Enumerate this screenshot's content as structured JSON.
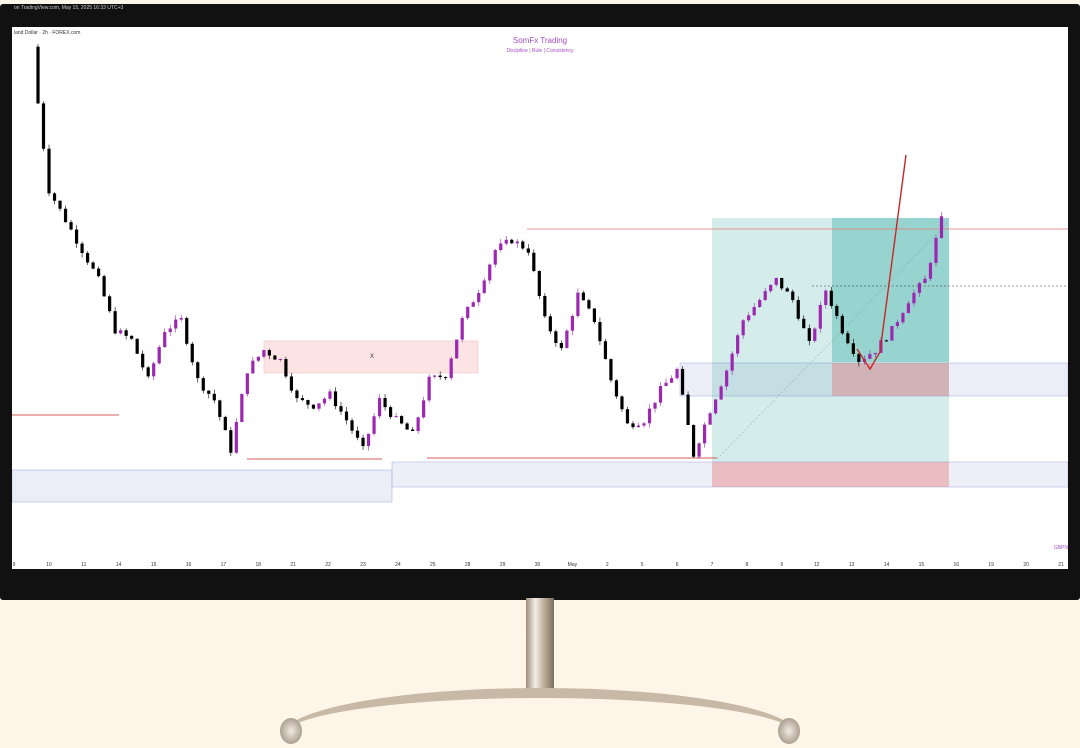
{
  "window": {
    "capture_text": "on TradingView.com, May 15, 2025 16:33 UTC+3"
  },
  "chart": {
    "symbol_line": "land Dollar · 2h · FOREX.com",
    "watermark_title": "SomFx Trading",
    "watermark_subtitle": "Discipline | Rule | Consistency",
    "ticker": "GBPN",
    "zone_label": "X",
    "x_ticks": [
      "9",
      "10",
      "11",
      "14",
      "15",
      "16",
      "17",
      "18",
      "21",
      "22",
      "23",
      "24",
      "25",
      "28",
      "29",
      "30",
      "May",
      "2",
      "5",
      "6",
      "7",
      "8",
      "9",
      "12",
      "13",
      "14",
      "15",
      "16",
      "19",
      "20",
      "21"
    ]
  },
  "chart_data": {
    "type": "candlestick",
    "close_path": [
      2.321,
      2.3015,
      2.297,
      2.2925,
      2.288,
      2.2805,
      2.279,
      2.273,
      2.2805,
      2.282,
      2.273,
      2.27,
      2.2625,
      2.2745,
      2.2775,
      2.276,
      2.27,
      2.2692,
      2.2708,
      2.267,
      2.2625,
      2.27,
      2.267,
      2.2648,
      2.273,
      2.2738,
      2.282,
      2.2865,
      2.2925,
      2.294,
      2.2925,
      2.282,
      2.2775,
      2.2858,
      2.282,
      2.273,
      2.2663,
      2.267,
      2.2715,
      2.2745,
      2.2618,
      2.2685,
      2.2745,
      2.282,
      2.285,
      2.288,
      2.285,
      2.2783,
      2.2865,
      2.2805,
      2.276,
      2.2775,
      2.2805,
      2.285,
      2.288,
      2.297
    ],
    "colors": {
      "up": "#9c27b0",
      "down": "#000000",
      "target": "#26a69a",
      "stop": "#e57373",
      "demand": "#c5cae9",
      "level": "#c62828"
    }
  }
}
